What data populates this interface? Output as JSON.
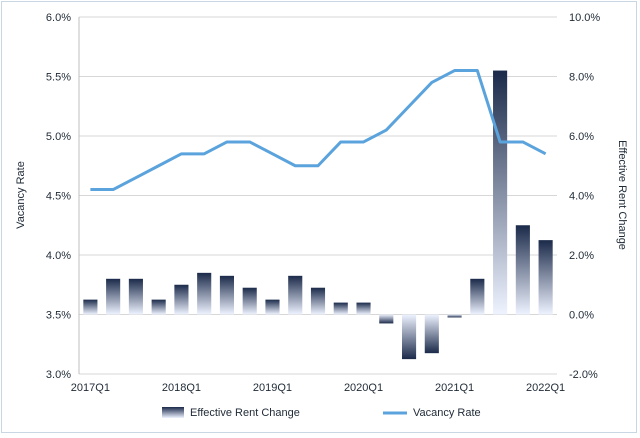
{
  "chart_data": {
    "type": "bar+line",
    "categories": [
      "2017Q1",
      "2017Q2",
      "2017Q3",
      "2017Q4",
      "2018Q1",
      "2018Q2",
      "2018Q3",
      "2018Q4",
      "2019Q1",
      "2019Q2",
      "2019Q3",
      "2019Q4",
      "2020Q1",
      "2020Q2",
      "2020Q3",
      "2020Q4",
      "2021Q1",
      "2021Q2",
      "2021Q3",
      "2021Q4",
      "2022Q1"
    ],
    "x_tick_labels": [
      "2017Q1",
      "2018Q1",
      "2019Q1",
      "2020Q1",
      "2021Q1",
      "2022Q1"
    ],
    "series": [
      {
        "name": "Effective Rent Change",
        "kind": "bar",
        "axis": "right",
        "values": [
          0.5,
          1.2,
          1.2,
          0.5,
          1.0,
          1.4,
          1.3,
          0.9,
          0.5,
          1.3,
          0.9,
          0.4,
          0.4,
          -0.3,
          -1.5,
          -1.3,
          -0.1,
          1.2,
          8.2,
          3.0,
          2.5
        ]
      },
      {
        "name": "Vacancy Rate",
        "kind": "line",
        "axis": "left",
        "values": [
          4.55,
          4.55,
          4.65,
          4.75,
          4.85,
          4.85,
          4.95,
          4.95,
          4.85,
          4.75,
          4.75,
          4.95,
          4.95,
          5.05,
          5.25,
          5.45,
          5.55,
          5.55,
          4.95,
          4.95,
          4.85
        ]
      }
    ],
    "left_axis": {
      "label": "Vacancy Rate",
      "min": 3.0,
      "max": 6.0,
      "step": 0.5,
      "tick_labels": [
        "3.0%",
        "3.5%",
        "4.0%",
        "4.5%",
        "5.0%",
        "5.5%",
        "6.0%"
      ]
    },
    "right_axis": {
      "label": "Effective Rent Change",
      "min": -2.0,
      "max": 10.0,
      "step": 2.0,
      "tick_labels": [
        "-2.0%",
        "0.0%",
        "2.0%",
        "4.0%",
        "6.0%",
        "8.0%",
        "10.0%"
      ]
    },
    "grid": true,
    "legend_position": "bottom",
    "colors": {
      "bar_top": "#1b2a4a",
      "bar_bottom": "#eef3ff",
      "line": "#5ba3dc",
      "grid": "#d7d7d7"
    }
  }
}
